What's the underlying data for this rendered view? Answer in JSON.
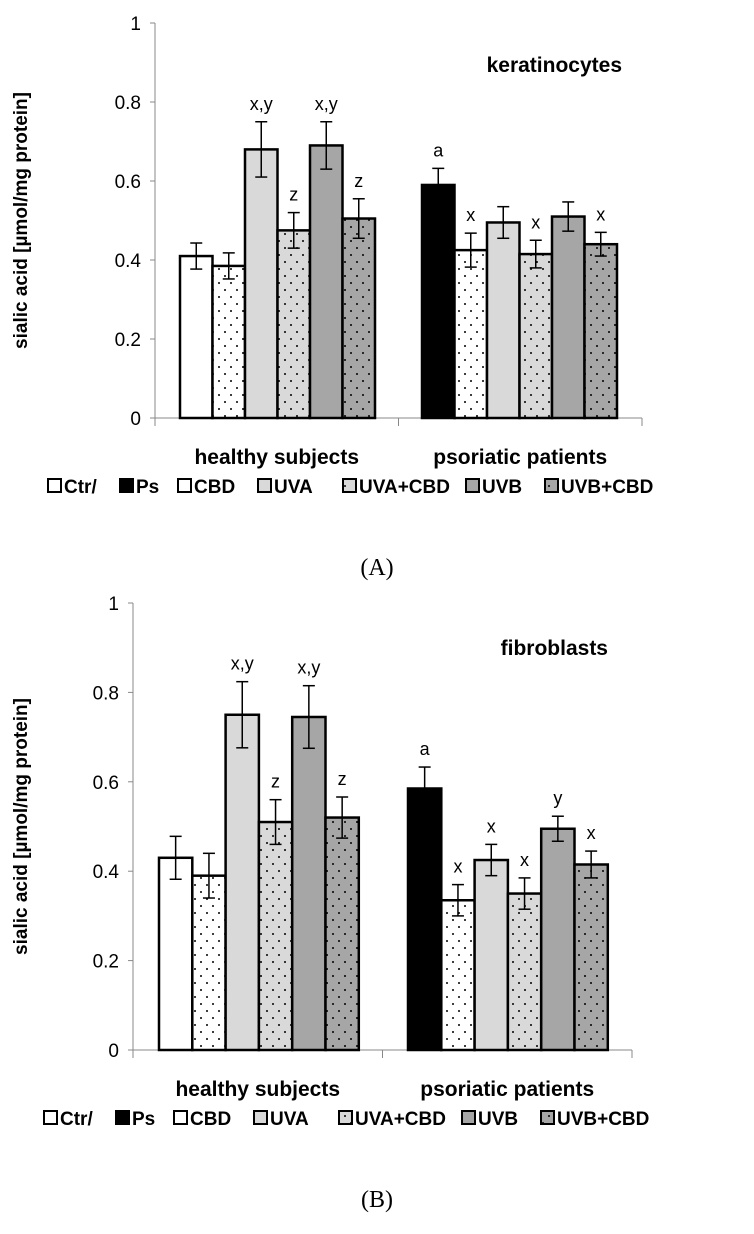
{
  "legend": [
    "Ctr/",
    "Ps",
    "CBD",
    "UVA",
    "UVA+CBD",
    "UVB",
    "UVB+CBD"
  ],
  "colors": {
    "ctr": "#ffffff",
    "ps": "#000000",
    "cbd": "#ffffff",
    "uva": "#d9d9d9",
    "uva_cbd": "#d9d9d9",
    "uvb": "#a6a6a6",
    "uvb_cbd": "#a6a6a6"
  },
  "chart_data": [
    {
      "type": "bar",
      "panel": "(A)",
      "title": "keratinocytes",
      "ylabel": "sialic acid [µmol/mg protein]",
      "ylim": [
        0,
        1
      ],
      "yticks": [
        "0",
        "0.2",
        "0.4",
        "0.6",
        "0.8",
        "1"
      ],
      "categories": [
        "healthy subjects",
        "psoriatic patients"
      ],
      "series": [
        {
          "name": "Ctr/ Ps",
          "values": [
            0.41,
            0.59
          ],
          "errors": [
            0.033,
            0.042
          ],
          "labels": [
            "",
            "a"
          ]
        },
        {
          "name": "CBD",
          "values": [
            0.385,
            0.425
          ],
          "errors": [
            0.033,
            0.043
          ],
          "labels": [
            "",
            "x"
          ]
        },
        {
          "name": "UVA",
          "values": [
            0.68,
            0.495
          ],
          "errors": [
            0.07,
            0.04
          ],
          "labels": [
            "x,y",
            ""
          ]
        },
        {
          "name": "UVA+CBD",
          "values": [
            0.475,
            0.415
          ],
          "errors": [
            0.045,
            0.035
          ],
          "labels": [
            "z",
            "x"
          ]
        },
        {
          "name": "UVB",
          "values": [
            0.69,
            0.51
          ],
          "errors": [
            0.06,
            0.037
          ],
          "labels": [
            "x,y",
            ""
          ]
        },
        {
          "name": "UVB+CBD",
          "values": [
            0.505,
            0.44
          ],
          "errors": [
            0.05,
            0.03
          ],
          "labels": [
            "z",
            "x"
          ]
        }
      ]
    },
    {
      "type": "bar",
      "panel": "(B)",
      "title": "fibroblasts",
      "ylabel": "sialic acid [µmol/mg protein]",
      "ylim": [
        0,
        1
      ],
      "yticks": [
        "0",
        "0.2",
        "0.4",
        "0.6",
        "0.8",
        "1"
      ],
      "categories": [
        "healthy subjects",
        "psoriatic patients"
      ],
      "series": [
        {
          "name": "Ctr/ Ps",
          "values": [
            0.43,
            0.585
          ],
          "errors": [
            0.048,
            0.048
          ],
          "labels": [
            "",
            "a"
          ]
        },
        {
          "name": "CBD",
          "values": [
            0.39,
            0.335
          ],
          "errors": [
            0.05,
            0.035
          ],
          "labels": [
            "",
            "x"
          ]
        },
        {
          "name": "UVA",
          "values": [
            0.75,
            0.425
          ],
          "errors": [
            0.074,
            0.035
          ],
          "labels": [
            "x,y",
            "x"
          ]
        },
        {
          "name": "UVA+CBD",
          "values": [
            0.51,
            0.35
          ],
          "errors": [
            0.05,
            0.035
          ],
          "labels": [
            "z",
            "x"
          ]
        },
        {
          "name": "UVB",
          "values": [
            0.745,
            0.495
          ],
          "errors": [
            0.07,
            0.028
          ],
          "labels": [
            "x,y",
            "y"
          ]
        },
        {
          "name": "UVB+CBD",
          "values": [
            0.52,
            0.415
          ],
          "errors": [
            0.046,
            0.03
          ],
          "labels": [
            "z",
            "x"
          ]
        }
      ]
    }
  ]
}
